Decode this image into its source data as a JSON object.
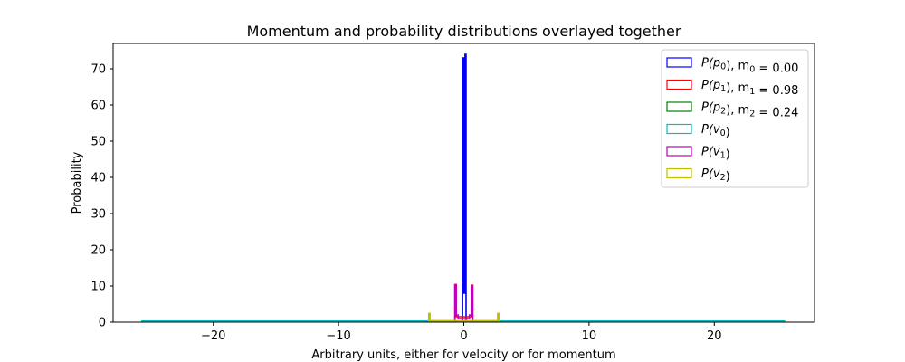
{
  "chart_data": {
    "type": "step-histogram",
    "title": "Momentum and probability distributions overlayed together",
    "xlabel": "Arbitrary units, either for velocity or for momentum",
    "ylabel": "Probability",
    "xlim": [
      -28,
      28
    ],
    "ylim": [
      0,
      77
    ],
    "xticks": [
      -20,
      -10,
      0,
      10,
      20
    ],
    "xtick_labels": [
      "−20",
      "−10",
      "0",
      "10",
      "20"
    ],
    "yticks": [
      0,
      10,
      20,
      30,
      40,
      50,
      60,
      70
    ],
    "ytick_labels": [
      "0",
      "10",
      "20",
      "30",
      "40",
      "50",
      "60",
      "70"
    ],
    "grid": false,
    "legend_position": "top-right",
    "series": [
      {
        "name": "P(p0), m0 = 0.00",
        "legend": {
          "base": "P(p",
          "sub": "0",
          "mid": "), m",
          "msub": "0",
          "tail": " = 0.00"
        },
        "color": "#0000ff",
        "points": [
          [
            -0.1,
            0
          ],
          [
            -0.1,
            73
          ],
          [
            0.0,
            73
          ],
          [
            0.0,
            8
          ],
          [
            0.1,
            8
          ],
          [
            0.1,
            74
          ],
          [
            0.18,
            74
          ],
          [
            0.18,
            0
          ]
        ]
      },
      {
        "name": "P(p1), m1 = 0.98",
        "legend": {
          "base": "P(p",
          "sub": "1",
          "mid": "), m",
          "msub": "1",
          "tail": " = 0.98"
        },
        "color": "#ff0000",
        "points": [
          [
            -0.72,
            0
          ],
          [
            -0.72,
            10.4
          ],
          [
            -0.6,
            10.4
          ],
          [
            -0.6,
            1.5
          ],
          [
            0.6,
            1.5
          ],
          [
            0.6,
            10.2
          ],
          [
            0.72,
            10.2
          ],
          [
            0.72,
            0
          ]
        ]
      },
      {
        "name": "P(p2), m2 = 0.24",
        "legend": {
          "base": "P(p",
          "sub": "2",
          "mid": "), m",
          "msub": "2",
          "tail": " = 0.24"
        },
        "color": "#008000",
        "points": [
          [
            -0.3,
            0
          ],
          [
            -0.3,
            0.4
          ],
          [
            0.3,
            0.4
          ],
          [
            0.3,
            0
          ]
        ]
      },
      {
        "name": "P(v0)",
        "legend": {
          "base": "P(v",
          "sub": "0",
          "mid": ")",
          "msub": "",
          "tail": ""
        },
        "color": "#00bfbf",
        "points": [
          [
            -25.7,
            0
          ],
          [
            -25.7,
            0.3
          ],
          [
            25.6,
            0.3
          ],
          [
            25.6,
            0
          ]
        ]
      },
      {
        "name": "P(v1)",
        "legend": {
          "base": "P(v",
          "sub": "1",
          "mid": ")",
          "msub": "",
          "tail": ""
        },
        "color": "#bf00bf",
        "points": [
          [
            -0.7,
            0
          ],
          [
            -0.7,
            10.2
          ],
          [
            -0.6,
            10.2
          ],
          [
            -0.6,
            2.0
          ],
          [
            -0.45,
            2.0
          ],
          [
            -0.45,
            1.0
          ],
          [
            0.45,
            1.0
          ],
          [
            0.45,
            2.0
          ],
          [
            0.6,
            2.0
          ],
          [
            0.6,
            10.0
          ],
          [
            0.7,
            10.0
          ],
          [
            0.7,
            0
          ]
        ]
      },
      {
        "name": "P(v2)",
        "legend": {
          "base": "P(v",
          "sub": "2",
          "mid": ")",
          "msub": "",
          "tail": ""
        },
        "color": "#bfbf00",
        "points": [
          [
            -2.8,
            0
          ],
          [
            -2.8,
            2.4
          ],
          [
            -2.7,
            2.4
          ],
          [
            -2.7,
            0.4
          ],
          [
            2.7,
            0.4
          ],
          [
            2.7,
            2.4
          ],
          [
            2.8,
            2.4
          ],
          [
            2.8,
            0
          ]
        ]
      }
    ]
  }
}
